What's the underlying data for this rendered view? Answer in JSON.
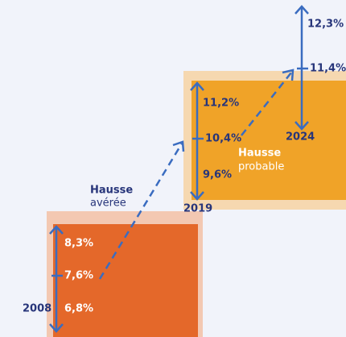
{
  "groups": [
    {
      "year": "2008",
      "high": "8,3%",
      "mid": "7,6%",
      "low": "6,8%"
    },
    {
      "year": "2019",
      "high": "11,2%",
      "mid": "10,4%",
      "low": "9,6%"
    },
    {
      "year": "2024",
      "high": "12,3%",
      "mid": "11,4%"
    }
  ],
  "labels": {
    "observed": {
      "title": "Hausse",
      "sub": "avérée"
    },
    "forecast": {
      "title": "Hausse",
      "sub": "probable"
    }
  }
}
